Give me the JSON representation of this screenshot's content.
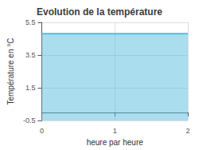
{
  "chart_data": {
    "type": "area",
    "title": "Evolution de la température",
    "xlabel": "heure par heure",
    "ylabel": "Température en °C",
    "x": [
      0,
      2
    ],
    "values": [
      4.8,
      4.8
    ],
    "color": "#55bbdd",
    "xlim": [
      0,
      2
    ],
    "xticks": [
      0,
      1,
      2
    ],
    "ylim": [
      -0.5,
      5.5
    ],
    "yticks": [
      -0.5,
      1.5,
      3.5,
      5.5
    ],
    "grid": true
  }
}
